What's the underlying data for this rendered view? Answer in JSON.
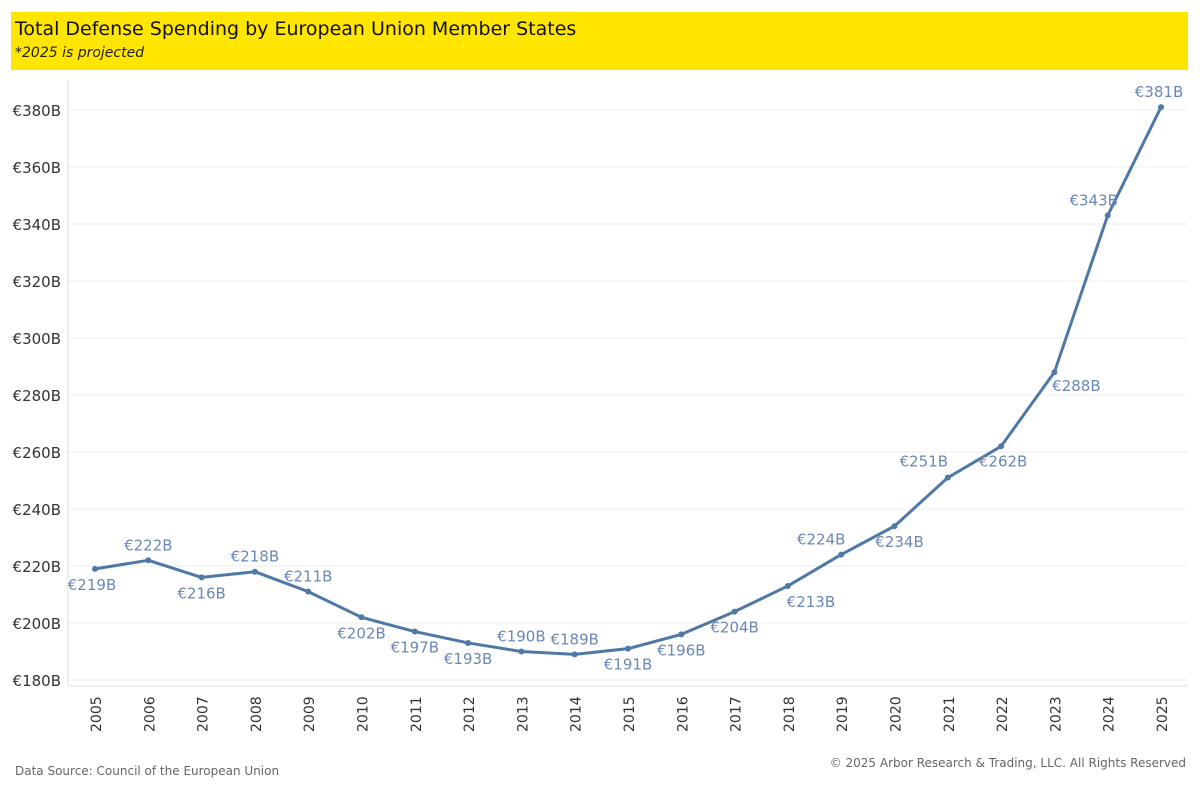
{
  "header": {
    "title": "Total Defense Spending by European Union Member States",
    "subtitle": "*2025 is projected"
  },
  "footer": {
    "source": "Data Source: Council of the European Union",
    "copyright": "© 2025 Arbor Research & Trading, LLC. All Rights Reserved"
  },
  "chart_data": {
    "type": "line",
    "title": "Total Defense Spending by European Union Member States",
    "x": [
      "2005",
      "2006",
      "2007",
      "2008",
      "2009",
      "2010",
      "2011",
      "2012",
      "2013",
      "2014",
      "2015",
      "2016",
      "2017",
      "2018",
      "2019",
      "2020",
      "2021",
      "2022",
      "2023",
      "2024",
      "2025"
    ],
    "values": [
      219,
      222,
      216,
      218,
      211,
      202,
      197,
      193,
      190,
      189,
      191,
      196,
      204,
      213,
      224,
      234,
      251,
      262,
      288,
      343,
      381
    ],
    "labels": [
      "€219B",
      "€222B",
      "€216B",
      "€218B",
      "€211B",
      "€202B",
      "€197B",
      "€193B",
      "€190B",
      "€189B",
      "€191B",
      "€196B",
      "€204B",
      "€213B",
      "€224B",
      "€234B",
      "€251B",
      "€262B",
      "€288B",
      "€343B",
      "€381B"
    ],
    "yticks": [
      180,
      200,
      220,
      240,
      260,
      280,
      300,
      320,
      340,
      360,
      380
    ],
    "ytick_labels": [
      "€180B",
      "€200B",
      "€220B",
      "€240B",
      "€260B",
      "€280B",
      "€300B",
      "€320B",
      "€340B",
      "€360B",
      "€380B"
    ],
    "ylim": [
      177,
      390
    ],
    "grid": true,
    "color": "#4e79a7",
    "label_color": "#6b87b8"
  }
}
